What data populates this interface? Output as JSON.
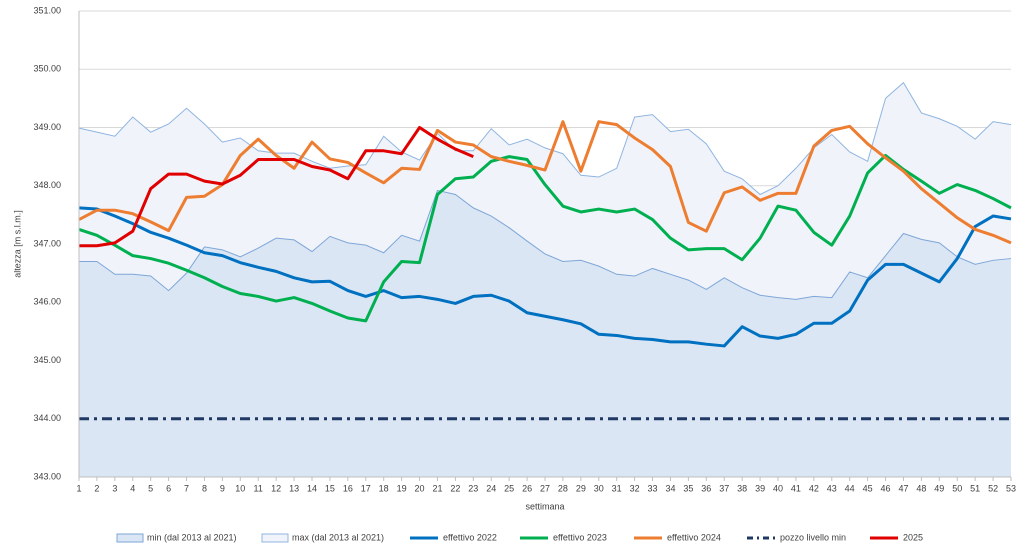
{
  "chart_data": {
    "type": "line",
    "x_label": "settimana",
    "y_label": "altezza [m s.l.m.]",
    "x": [
      1,
      2,
      3,
      4,
      5,
      6,
      7,
      8,
      9,
      10,
      11,
      12,
      13,
      14,
      15,
      16,
      17,
      18,
      19,
      20,
      21,
      22,
      23,
      24,
      25,
      26,
      27,
      28,
      29,
      30,
      31,
      32,
      33,
      34,
      35,
      36,
      37,
      38,
      39,
      40,
      41,
      42,
      43,
      44,
      45,
      46,
      47,
      48,
      49,
      50,
      51,
      52,
      53
    ],
    "xlim": [
      1,
      53
    ],
    "ylim": [
      343,
      351
    ],
    "yticks": [
      {
        "value": 343,
        "label": "343.00"
      },
      {
        "value": 344,
        "label": "344.00"
      },
      {
        "value": 345,
        "label": "345.00"
      },
      {
        "value": 346,
        "label": "346.00"
      },
      {
        "value": 347,
        "label": "347.00"
      },
      {
        "value": 348,
        "label": "348.00"
      },
      {
        "value": 349,
        "label": "349.00"
      },
      {
        "value": 350,
        "label": "350.00"
      },
      {
        "value": 351,
        "label": "351.00"
      }
    ],
    "grid": true,
    "legend": "bottom",
    "series": [
      {
        "name": "min (dal 2013 al 2021)",
        "type": "area",
        "color": "#7ea6d8",
        "fill": "#dbe6f4",
        "values": [
          346.7,
          346.7,
          346.48,
          346.48,
          346.45,
          346.2,
          346.5,
          346.95,
          346.9,
          346.78,
          346.93,
          347.1,
          347.07,
          346.87,
          347.13,
          347.02,
          346.98,
          346.85,
          347.15,
          347.05,
          347.92,
          347.85,
          347.62,
          347.48,
          347.28,
          347.05,
          346.83,
          346.7,
          346.72,
          346.62,
          346.48,
          346.45,
          346.58,
          346.48,
          346.38,
          346.22,
          346.42,
          346.25,
          346.12,
          346.08,
          346.05,
          346.1,
          346.08,
          346.52,
          346.42,
          346.8,
          347.18,
          347.08,
          347.02,
          346.78,
          346.65,
          346.72,
          346.75
        ]
      },
      {
        "name": "max (dal 2013 al 2021)",
        "type": "area",
        "color": "#8fb4e0",
        "fill": "#f0f4fa",
        "values": [
          348.99,
          348.92,
          348.85,
          349.18,
          348.92,
          349.06,
          349.33,
          349.06,
          348.75,
          348.82,
          348.6,
          348.56,
          348.56,
          348.42,
          348.3,
          348.34,
          348.36,
          348.85,
          348.58,
          348.44,
          348.9,
          348.6,
          348.6,
          348.98,
          348.7,
          348.8,
          348.65,
          348.55,
          348.18,
          348.15,
          348.3,
          349.18,
          349.22,
          348.93,
          348.97,
          348.72,
          348.25,
          348.12,
          347.85,
          348.0,
          348.3,
          348.65,
          348.88,
          348.58,
          348.42,
          349.5,
          349.77,
          349.25,
          349.15,
          349.02,
          348.8,
          349.1,
          349.05
        ]
      },
      {
        "name": "effettivo 2022",
        "type": "line",
        "color": "#0070c0",
        "values": [
          347.62,
          347.6,
          347.48,
          347.35,
          347.2,
          347.1,
          346.98,
          346.85,
          346.8,
          346.68,
          346.6,
          346.53,
          346.42,
          346.35,
          346.36,
          346.2,
          346.1,
          346.2,
          346.08,
          346.1,
          346.05,
          345.98,
          346.1,
          346.12,
          346.02,
          345.82,
          345.76,
          345.7,
          345.63,
          345.45,
          345.43,
          345.38,
          345.36,
          345.32,
          345.32,
          345.28,
          345.25,
          345.58,
          345.42,
          345.38,
          345.45,
          345.64,
          345.64,
          345.85,
          346.38,
          346.65,
          346.65,
          346.5,
          346.35,
          346.75,
          347.3,
          347.48,
          347.43
        ]
      },
      {
        "name": "effettivo 2023",
        "type": "line",
        "color": "#00b050",
        "values": [
          347.25,
          347.15,
          346.98,
          346.8,
          346.75,
          346.67,
          346.55,
          346.42,
          346.27,
          346.15,
          346.1,
          346.02,
          346.08,
          345.98,
          345.85,
          345.73,
          345.68,
          346.35,
          346.7,
          346.68,
          347.85,
          348.12,
          348.15,
          348.42,
          348.5,
          348.45,
          348.02,
          347.65,
          347.55,
          347.6,
          347.55,
          347.6,
          347.42,
          347.1,
          346.9,
          346.92,
          346.92,
          346.73,
          347.1,
          347.65,
          347.58,
          347.2,
          346.98,
          347.48,
          348.22,
          348.52,
          348.28,
          348.08,
          347.87,
          348.02,
          347.92,
          347.78,
          347.62
        ]
      },
      {
        "name": "effettivo 2024",
        "type": "line",
        "color": "#ed7d31",
        "values": [
          347.42,
          347.58,
          347.58,
          347.52,
          347.38,
          347.23,
          347.8,
          347.82,
          348.02,
          348.52,
          348.8,
          348.52,
          348.3,
          348.75,
          348.46,
          348.4,
          348.22,
          348.05,
          348.3,
          348.28,
          348.95,
          348.75,
          348.7,
          348.5,
          348.42,
          348.35,
          348.27,
          349.1,
          348.25,
          349.1,
          349.05,
          348.82,
          348.62,
          348.33,
          347.37,
          347.22,
          347.88,
          347.98,
          347.75,
          347.87,
          347.87,
          348.68,
          348.95,
          349.02,
          348.72,
          348.48,
          348.25,
          347.95,
          347.7,
          347.45,
          347.25,
          347.15,
          347.02
        ]
      },
      {
        "name": "pozzo livello min",
        "type": "line",
        "color": "#1f3864",
        "dash": "dashdot",
        "values": [
          344,
          344,
          344,
          344,
          344,
          344,
          344,
          344,
          344,
          344,
          344,
          344,
          344,
          344,
          344,
          344,
          344,
          344,
          344,
          344,
          344,
          344,
          344,
          344,
          344,
          344,
          344,
          344,
          344,
          344,
          344,
          344,
          344,
          344,
          344,
          344,
          344,
          344,
          344,
          344,
          344,
          344,
          344,
          344,
          344,
          344,
          344,
          344,
          344,
          344,
          344,
          344,
          344
        ]
      },
      {
        "name": "2025",
        "type": "line",
        "color": "#e00000",
        "values": [
          346.97,
          346.97,
          347.02,
          347.22,
          347.95,
          348.2,
          348.2,
          348.08,
          348.03,
          348.18,
          348.45,
          348.45,
          348.45,
          348.33,
          348.27,
          348.12,
          348.6,
          348.6,
          348.55,
          349.0,
          348.8,
          348.63,
          348.5,
          null,
          null,
          null,
          null,
          null,
          null,
          null,
          null,
          null,
          null,
          null,
          null,
          null,
          null,
          null,
          null,
          null,
          null,
          null,
          null,
          null,
          null,
          null,
          null,
          null,
          null,
          null,
          null,
          null,
          null
        ]
      }
    ]
  }
}
